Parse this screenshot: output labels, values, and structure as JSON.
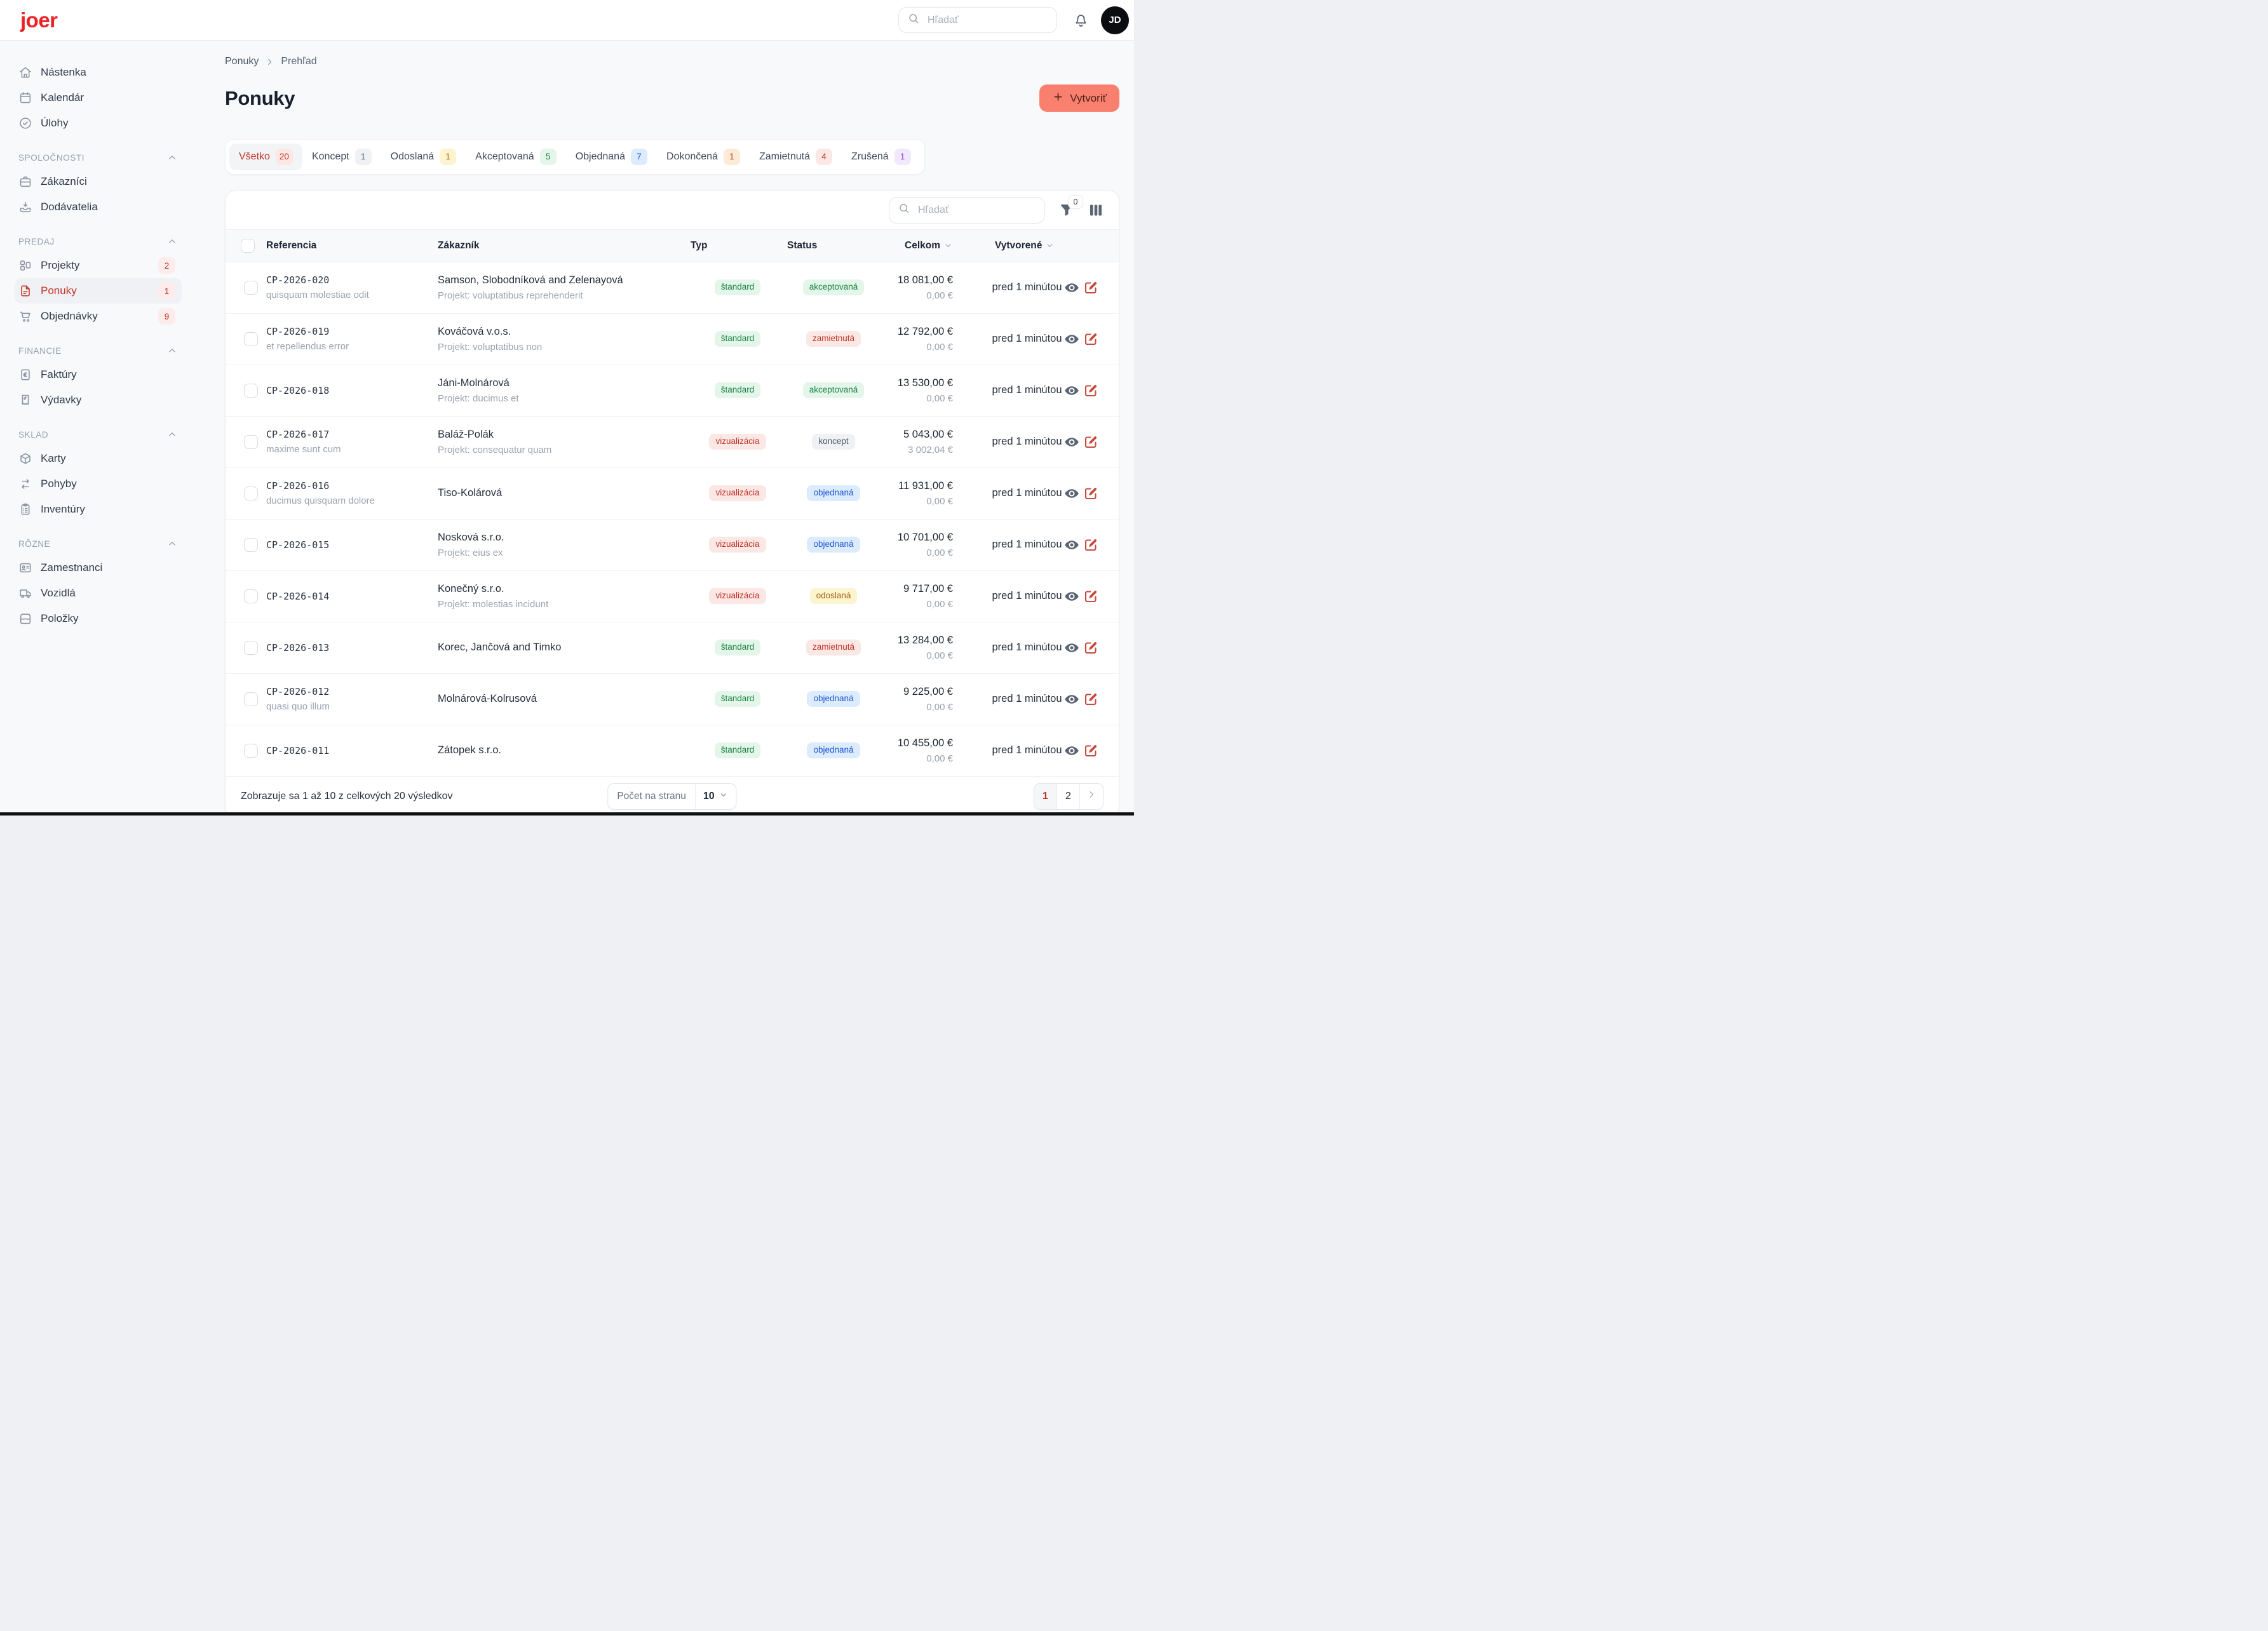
{
  "app": {
    "logo_text": "joer"
  },
  "topbar": {
    "search_placeholder": "Hľadať",
    "avatar_initials": "JD"
  },
  "sidebar": {
    "main_items": [
      {
        "icon": "home",
        "label": "Nástenka"
      },
      {
        "icon": "calendar",
        "label": "Kalendár"
      },
      {
        "icon": "check-circle",
        "label": "Úlohy"
      }
    ],
    "sections": [
      {
        "title": "SPOLOČNOSTI",
        "items": [
          {
            "icon": "briefcase",
            "label": "Zákazníci"
          },
          {
            "icon": "inbox-down",
            "label": "Dodávatelia"
          }
        ]
      },
      {
        "title": "PREDAJ",
        "items": [
          {
            "icon": "layout-grid",
            "label": "Projekty",
            "badge": "2"
          },
          {
            "icon": "file-text",
            "label": "Ponuky",
            "badge": "1",
            "active": true
          },
          {
            "icon": "shopping-cart",
            "label": "Objednávky",
            "badge": "9"
          }
        ]
      },
      {
        "title": "FINANCIE",
        "items": [
          {
            "icon": "file-euro",
            "label": "Faktúry"
          },
          {
            "icon": "receipt",
            "label": "Výdavky"
          }
        ]
      },
      {
        "title": "SKLAD",
        "items": [
          {
            "icon": "cube",
            "label": "Karty"
          },
          {
            "icon": "arrows-exchange",
            "label": "Pohyby"
          },
          {
            "icon": "clipboard-list",
            "label": "Inventúry"
          }
        ]
      },
      {
        "title": "RÔZNE",
        "items": [
          {
            "icon": "id-card",
            "label": "Zamestnanci"
          },
          {
            "icon": "truck",
            "label": "Vozidlá"
          },
          {
            "icon": "archive",
            "label": "Položky"
          }
        ]
      }
    ]
  },
  "page": {
    "breadcrumb": [
      {
        "label": "Ponuky"
      },
      {
        "label": "Prehľad"
      }
    ],
    "title": "Ponuky",
    "create_label": "Vytvoriť"
  },
  "tabs": [
    {
      "label": "Všetko",
      "count": "20",
      "tone": "red",
      "active": true
    },
    {
      "label": "Koncept",
      "count": "1",
      "tone": "gray"
    },
    {
      "label": "Odoslaná",
      "count": "1",
      "tone": "amber"
    },
    {
      "label": "Akceptovaná",
      "count": "5",
      "tone": "green"
    },
    {
      "label": "Objednaná",
      "count": "7",
      "tone": "blue"
    },
    {
      "label": "Dokončená",
      "count": "1",
      "tone": "orange"
    },
    {
      "label": "Zamietnutá",
      "count": "4",
      "tone": "red"
    },
    {
      "label": "Zrušená",
      "count": "1",
      "tone": "purple"
    }
  ],
  "table": {
    "search_placeholder": "Hľadať",
    "filter_badge": "0",
    "headers": {
      "reference": "Referencia",
      "customer": "Zákazník",
      "type": "Typ",
      "status": "Status",
      "total": "Celkom",
      "created": "Vytvorené"
    },
    "rows": [
      {
        "reference": "CP-2026-020",
        "reference_note": "quisquam molestiae odit",
        "customer": "Samson, Slobodníková and Zelenayová",
        "project": "Projekt: voluptatibus reprehenderit",
        "type": "štandard",
        "type_tone": "green",
        "status": "akceptovaná",
        "status_tone": "green",
        "total": "18 081,00 €",
        "total_secondary": "0,00 €",
        "created": "pred 1 minútou"
      },
      {
        "reference": "CP-2026-019",
        "reference_note": "et repellendus error",
        "customer": "Kováčová v.o.s.",
        "project": "Projekt: voluptatibus non",
        "type": "štandard",
        "type_tone": "green",
        "status": "zamietnutá",
        "status_tone": "red",
        "total": "12 792,00 €",
        "total_secondary": "0,00 €",
        "created": "pred 1 minútou"
      },
      {
        "reference": "CP-2026-018",
        "reference_note": "",
        "customer": "Jáni-Molnárová",
        "project": "Projekt: ducimus et",
        "type": "štandard",
        "type_tone": "green",
        "status": "akceptovaná",
        "status_tone": "green",
        "total": "13 530,00 €",
        "total_secondary": "0,00 €",
        "created": "pred 1 minútou"
      },
      {
        "reference": "CP-2026-017",
        "reference_note": "maxime sunt cum",
        "customer": "Baláž-Polák",
        "project": "Projekt: consequatur quam",
        "type": "vizualizácia",
        "type_tone": "red",
        "status": "koncept",
        "status_tone": "gray",
        "total": "5 043,00 €",
        "total_secondary": "3 002,04 €",
        "created": "pred 1 minútou"
      },
      {
        "reference": "CP-2026-016",
        "reference_note": "ducimus quisquam dolore",
        "customer": "Tiso-Kolárová",
        "project": "",
        "type": "vizualizácia",
        "type_tone": "red",
        "status": "objednaná",
        "status_tone": "blue",
        "total": "11 931,00 €",
        "total_secondary": "0,00 €",
        "created": "pred 1 minútou"
      },
      {
        "reference": "CP-2026-015",
        "reference_note": "",
        "customer": "Nosková s.r.o.",
        "project": "Projekt: eius ex",
        "type": "vizualizácia",
        "type_tone": "red",
        "status": "objednaná",
        "status_tone": "blue",
        "total": "10 701,00 €",
        "total_secondary": "0,00 €",
        "created": "pred 1 minútou"
      },
      {
        "reference": "CP-2026-014",
        "reference_note": "",
        "customer": "Konečný s.r.o.",
        "project": "Projekt: molestias incidunt",
        "type": "vizualizácia",
        "type_tone": "red",
        "status": "odoslaná",
        "status_tone": "amber",
        "total": "9 717,00 €",
        "total_secondary": "0,00 €",
        "created": "pred 1 minútou"
      },
      {
        "reference": "CP-2026-013",
        "reference_note": "",
        "customer": "Korec, Jančová and Timko",
        "project": "",
        "type": "štandard",
        "type_tone": "green",
        "status": "zamietnutá",
        "status_tone": "red",
        "total": "13 284,00 €",
        "total_secondary": "0,00 €",
        "created": "pred 1 minútou"
      },
      {
        "reference": "CP-2026-012",
        "reference_note": "quasi quo illum",
        "customer": "Molnárová-Kolrusová",
        "project": "",
        "type": "štandard",
        "type_tone": "green",
        "status": "objednaná",
        "status_tone": "blue",
        "total": "9 225,00 €",
        "total_secondary": "0,00 €",
        "created": "pred 1 minútou"
      },
      {
        "reference": "CP-2026-011",
        "reference_note": "",
        "customer": "Zátopek s.r.o.",
        "project": "",
        "type": "štandard",
        "type_tone": "green",
        "status": "objednaná",
        "status_tone": "blue",
        "total": "10 455,00 €",
        "total_secondary": "0,00 €",
        "created": "pred 1 minútou"
      }
    ]
  },
  "footer": {
    "summary": "Zobrazuje sa 1 až 10 z celkových 20 výsledkov",
    "per_page_label": "Počet na stranu",
    "per_page_value": "10",
    "pages": [
      {
        "label": "1",
        "active": true
      },
      {
        "label": "2"
      }
    ]
  },
  "colors": {
    "logo_red": "#ec2224",
    "accent_red": "#c23329",
    "create_button_bg": "#f9806e",
    "create_button_text": "#4f1f17"
  }
}
